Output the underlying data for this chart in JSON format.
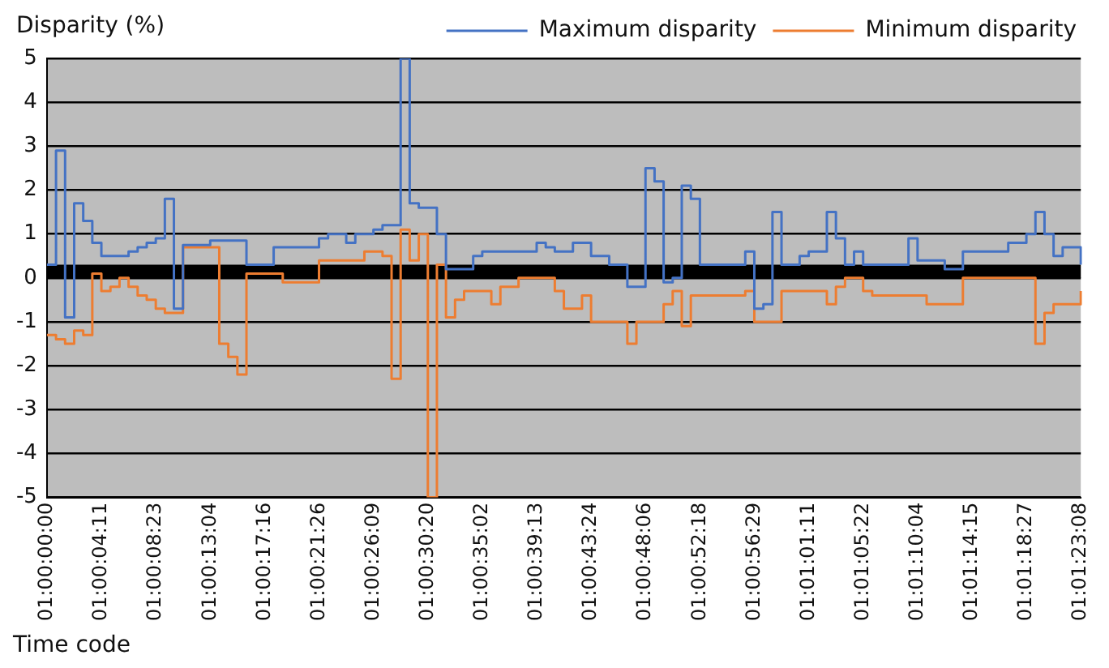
{
  "chart_data": {
    "type": "step",
    "ylabel": "Disparity (%)",
    "xlabel": "Time code",
    "categories": [
      "01:00:00:00",
      null,
      null,
      null,
      null,
      null,
      "01:00:04:11",
      null,
      null,
      null,
      null,
      null,
      "01:00:08:23",
      null,
      null,
      null,
      null,
      null,
      "01:00:13:04",
      null,
      null,
      null,
      null,
      null,
      "01:00:17:16",
      null,
      null,
      null,
      null,
      null,
      "01:00:21:26",
      null,
      null,
      null,
      null,
      null,
      "01:00:26:09",
      null,
      null,
      null,
      null,
      null,
      "01:00:30:20",
      null,
      null,
      null,
      null,
      null,
      "01:00:35:02",
      null,
      null,
      null,
      null,
      null,
      "01:00:39:13",
      null,
      null,
      null,
      null,
      null,
      "01:00:43:24",
      null,
      null,
      null,
      null,
      null,
      "01:00:48:06",
      null,
      null,
      null,
      null,
      null,
      "01:00:52:18",
      null,
      null,
      null,
      null,
      null,
      "01:00:56:29",
      null,
      null,
      null,
      null,
      null,
      "01:01:01:11",
      null,
      null,
      null,
      null,
      null,
      "01:01:05:22",
      null,
      null,
      null,
      null,
      null,
      "01:01:10:04",
      null,
      null,
      null,
      null,
      null,
      "01:01:14:15",
      null,
      null,
      null,
      null,
      null,
      "01:01:18:27",
      null,
      null,
      null,
      null,
      null,
      "01:01:23:08"
    ],
    "series": [
      {
        "name": "Maximum disparity",
        "color": "#4472c4",
        "values": [
          0.3,
          2.9,
          -0.9,
          1.7,
          1.3,
          0.8,
          0.5,
          0.5,
          0.5,
          0.6,
          0.7,
          0.8,
          0.9,
          1.8,
          -0.7,
          0.75,
          0.75,
          0.75,
          0.85,
          0.85,
          0.85,
          0.85,
          0.3,
          0.3,
          0.3,
          0.7,
          0.7,
          0.7,
          0.7,
          0.7,
          0.9,
          1.0,
          1.0,
          0.8,
          1.0,
          1.0,
          1.1,
          1.2,
          1.2,
          5,
          1.7,
          1.6,
          1.6,
          1.0,
          0.2,
          0.2,
          0.2,
          0.5,
          0.6,
          0.6,
          0.6,
          0.6,
          0.6,
          0.6,
          0.8,
          0.7,
          0.6,
          0.6,
          0.8,
          0.8,
          0.5,
          0.5,
          0.3,
          0.3,
          -0.2,
          -0.2,
          2.5,
          2.2,
          -0.1,
          0.0,
          2.1,
          1.8,
          0.3,
          0.3,
          0.3,
          0.3,
          0.3,
          0.6,
          -0.7,
          -0.6,
          1.5,
          0.3,
          0.3,
          0.5,
          0.6,
          0.6,
          1.5,
          0.9,
          0.3,
          0.6,
          0.3,
          0.3,
          0.3,
          0.3,
          0.3,
          0.9,
          0.4,
          0.4,
          0.4,
          0.2,
          0.2,
          0.6,
          0.6,
          0.6,
          0.6,
          0.6,
          0.8,
          0.8,
          1.0,
          1.5,
          1.0,
          0.5,
          0.7,
          0.7,
          0.3
        ]
      },
      {
        "name": "Minimum disparity",
        "color": "#ed7d31",
        "values": [
          -1.3,
          -1.4,
          -1.5,
          -1.2,
          -1.3,
          0.1,
          -0.3,
          -0.2,
          0.0,
          -0.2,
          -0.4,
          -0.5,
          -0.7,
          -0.8,
          -0.8,
          0.7,
          0.7,
          0.7,
          0.7,
          -1.5,
          -1.8,
          -2.2,
          0.1,
          0.1,
          0.1,
          0.1,
          -0.1,
          -0.1,
          -0.1,
          -0.1,
          0.4,
          0.4,
          0.4,
          0.4,
          0.4,
          0.6,
          0.6,
          0.5,
          -2.3,
          1.1,
          0.4,
          1.0,
          -5,
          0.3,
          -0.9,
          -0.5,
          -0.3,
          -0.3,
          -0.3,
          -0.6,
          -0.2,
          -0.2,
          0.0,
          0.0,
          0.0,
          0.0,
          -0.3,
          -0.7,
          -0.7,
          -0.4,
          -1.0,
          -1.0,
          -1.0,
          -1.0,
          -1.5,
          -1.0,
          -1.0,
          -1.0,
          -0.6,
          -0.3,
          -1.1,
          -0.4,
          -0.4,
          -0.4,
          -0.4,
          -0.4,
          -0.4,
          -0.3,
          -1.0,
          -1.0,
          -1.0,
          -0.3,
          -0.3,
          -0.3,
          -0.3,
          -0.3,
          -0.6,
          -0.2,
          0.0,
          0.0,
          -0.3,
          -0.4,
          -0.4,
          -0.4,
          -0.4,
          -0.4,
          -0.4,
          -0.6,
          -0.6,
          -0.6,
          -0.6,
          0.0,
          0.0,
          0.0,
          0.0,
          0.0,
          0.0,
          0.0,
          0.0,
          -1.5,
          -0.8,
          -0.6,
          -0.6,
          -0.6,
          -0.3
        ]
      }
    ],
    "ylim": [
      -5,
      5
    ],
    "yticks": [
      -5,
      -4,
      -3,
      -2,
      -1,
      0,
      1,
      2,
      3,
      4,
      5
    ],
    "bands": [
      {
        "axis": "y",
        "from": 0,
        "to": 0.3,
        "color": "#000000"
      }
    ],
    "grid": "y",
    "legend": "top right",
    "line_style": "solid",
    "marker": "none"
  }
}
